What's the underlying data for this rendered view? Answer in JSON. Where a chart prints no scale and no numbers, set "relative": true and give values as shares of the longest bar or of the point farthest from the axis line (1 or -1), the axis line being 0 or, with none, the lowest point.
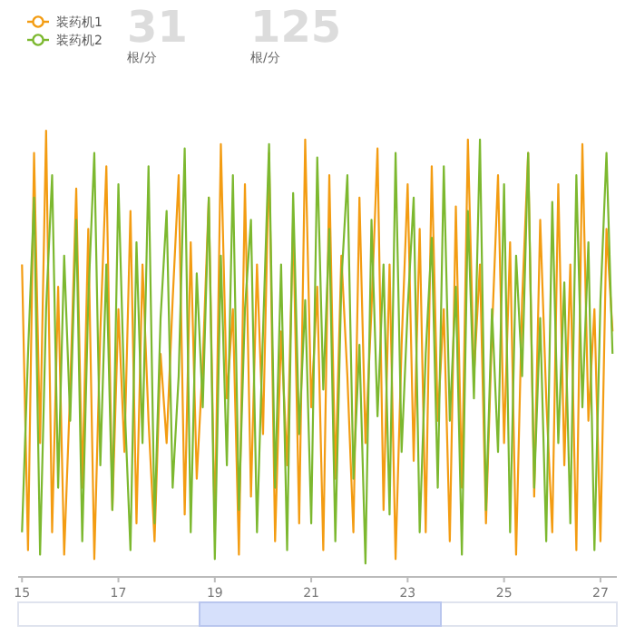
{
  "chart_data": {
    "type": "line",
    "relative": true,
    "legend": "top left",
    "annotations": [
      "31",
      "根/分",
      "125",
      "根/分"
    ],
    "xlim": [
      14.92,
      27.34
    ],
    "xticks": [
      15,
      17,
      19,
      21,
      23,
      25,
      27
    ],
    "x": [
      15,
      15.125,
      15.25,
      15.375,
      15.5,
      15.625,
      15.75,
      15.875,
      16,
      16.125,
      16.25,
      16.375,
      16.5,
      16.625,
      16.75,
      16.875,
      17,
      17.125,
      17.25,
      17.375,
      17.5,
      17.625,
      17.75,
      17.875,
      18,
      18.125,
      18.25,
      18.375,
      18.5,
      18.625,
      18.75,
      18.875,
      19,
      19.125,
      19.25,
      19.375,
      19.5,
      19.625,
      19.75,
      19.875,
      20,
      20.125,
      20.25,
      20.375,
      20.5,
      20.625,
      20.75,
      20.875,
      21,
      21.125,
      21.25,
      21.375,
      21.5,
      21.625,
      21.75,
      21.875,
      22,
      22.125,
      22.25,
      22.375,
      22.5,
      22.625,
      22.75,
      22.875,
      23,
      23.125,
      23.25,
      23.375,
      23.5,
      23.625,
      23.75,
      23.875,
      24,
      24.125,
      24.25,
      24.375,
      24.5,
      24.625,
      24.75,
      24.875,
      25,
      25.125,
      25.25,
      25.375,
      25.5,
      25.625,
      25.75,
      25.875,
      26,
      26.125,
      26.25,
      26.375,
      26.5,
      26.625,
      26.75,
      26.875,
      27,
      27.125,
      27.25
    ],
    "series": [
      {
        "name": "装药机1",
        "color": "#f39c12",
        "values": [
          0.7,
          0.06,
          0.95,
          0.3,
          1,
          0.1,
          0.65,
          0.05,
          0.42,
          0.87,
          0.2,
          0.78,
          0.04,
          0.55,
          0.92,
          0.15,
          0.6,
          0.28,
          0.82,
          0.12,
          0.7,
          0.35,
          0.08,
          0.5,
          0.3,
          0.62,
          0.9,
          0.14,
          0.75,
          0.22,
          0.48,
          0.85,
          0.1,
          0.97,
          0.4,
          0.6,
          0.05,
          0.88,
          0.18,
          0.7,
          0.32,
          0.95,
          0.08,
          0.55,
          0.25,
          0.8,
          0.12,
          0.98,
          0.38,
          0.65,
          0.06,
          0.9,
          0.22,
          0.72,
          0.45,
          0.1,
          0.85,
          0.3,
          0.6,
          0.96,
          0.15,
          0.7,
          0.04,
          0.52,
          0.88,
          0.26,
          0.78,
          0.1,
          0.92,
          0.35,
          0.6,
          0.08,
          0.83,
          0.2,
          0.98,
          0.45,
          0.7,
          0.12,
          0.55,
          0.9,
          0.3,
          0.75,
          0.05,
          0.62,
          0.95,
          0.18,
          0.8,
          0.4,
          0.1,
          0.88,
          0.25,
          0.7,
          0.06,
          0.97,
          0.35,
          0.6,
          0.08,
          0.78,
          0.55
        ]
      },
      {
        "name": "装药机2",
        "color": "#7cb82f",
        "values": [
          0.1,
          0.5,
          0.85,
          0.05,
          0.6,
          0.9,
          0.2,
          0.72,
          0.35,
          0.8,
          0.08,
          0.62,
          0.95,
          0.25,
          0.7,
          0.15,
          0.88,
          0.4,
          0.06,
          0.75,
          0.3,
          0.92,
          0.12,
          0.58,
          0.82,
          0.2,
          0.45,
          0.96,
          0.1,
          0.68,
          0.38,
          0.85,
          0.04,
          0.72,
          0.25,
          0.9,
          0.15,
          0.6,
          0.8,
          0.1,
          0.55,
          0.97,
          0.2,
          0.7,
          0.06,
          0.86,
          0.32,
          0.62,
          0.12,
          0.94,
          0.42,
          0.78,
          0.08,
          0.66,
          0.9,
          0.22,
          0.52,
          0.03,
          0.8,
          0.36,
          0.7,
          0.14,
          0.95,
          0.28,
          0.6,
          0.85,
          0.1,
          0.5,
          0.76,
          0.2,
          0.92,
          0.35,
          0.65,
          0.05,
          0.82,
          0.4,
          0.98,
          0.15,
          0.6,
          0.28,
          0.88,
          0.1,
          0.72,
          0.45,
          0.95,
          0.2,
          0.58,
          0.08,
          0.84,
          0.3,
          0.66,
          0.12,
          0.9,
          0.38,
          0.75,
          0.06,
          0.62,
          0.95,
          0.5
        ]
      }
    ]
  }
}
